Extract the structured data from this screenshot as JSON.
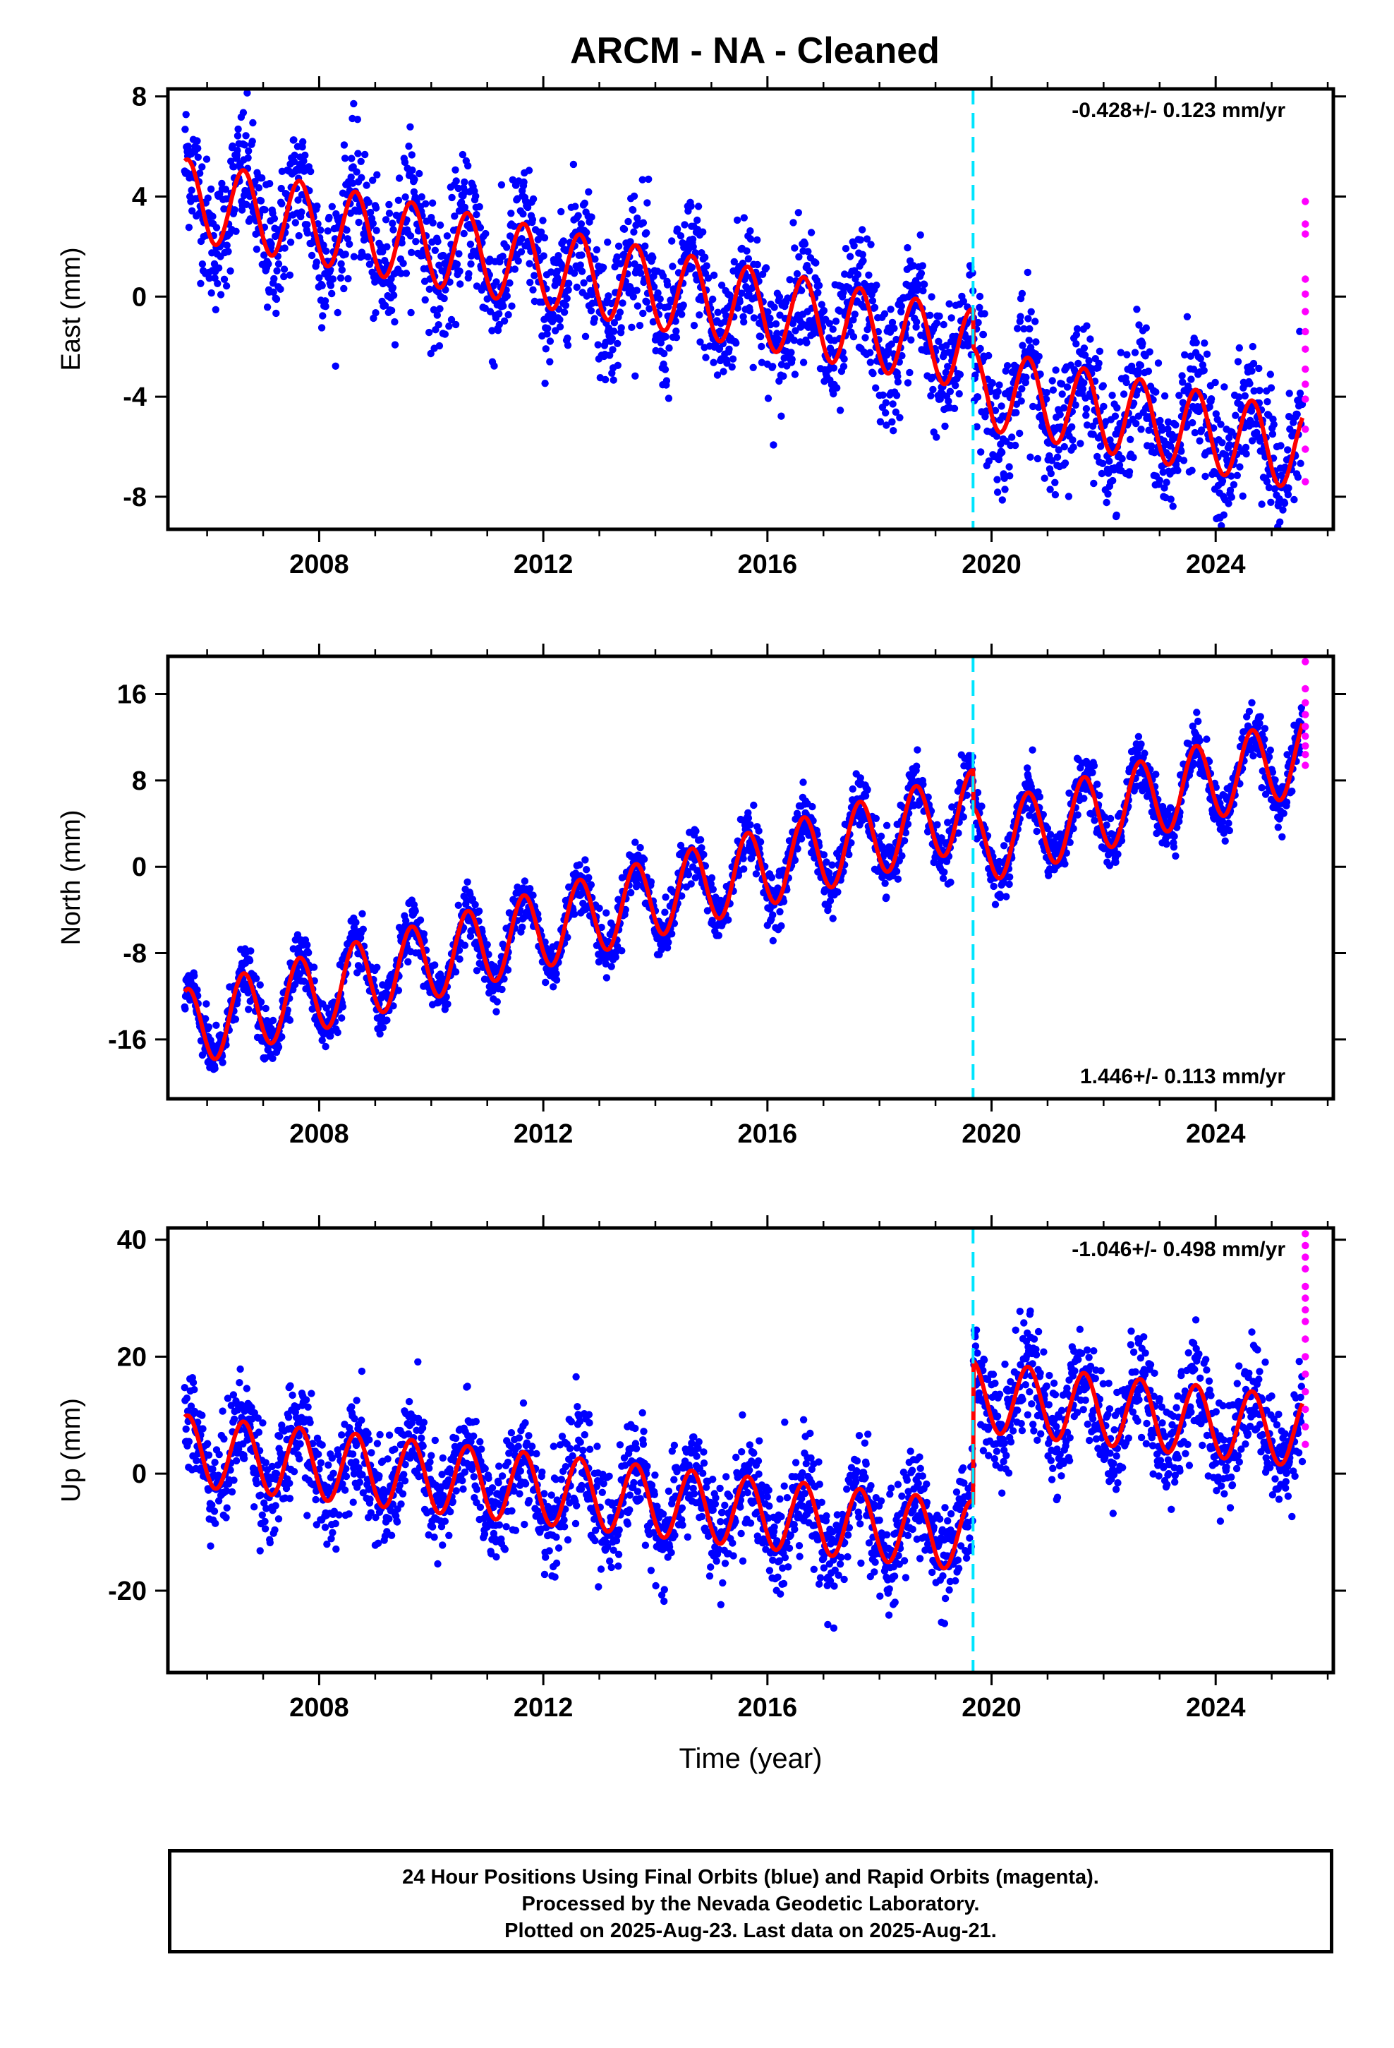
{
  "figure": {
    "title": "ARCM  - NA - Cleaned",
    "xlabel": "Time (year)",
    "x_ticks": [
      "2008",
      "2012",
      "2016",
      "2020",
      "2024"
    ],
    "equipment_change_year": 2019.67,
    "colors": {
      "final_orbits": "#0000ff",
      "rapid_orbits": "#ff00ff",
      "model": "#ff0000",
      "equipment_change": "#00e5ff"
    }
  },
  "caption": {
    "line1": "24 Hour Positions Using Final Orbits (blue) and Rapid Orbits (magenta).",
    "line2": "Processed by the Nevada Geodetic Laboratory.",
    "line3": "Plotted on 2025-Aug-23. Last data on 2025-Aug-21."
  },
  "chart_data": [
    {
      "type": "scatter",
      "ylabel": "East (mm)",
      "velocity_label": "-0.428+/- 0.123 mm/yr",
      "velocity_position": "top-right",
      "y_ticks": [
        "8",
        "4",
        "0",
        "-4",
        "-8"
      ],
      "x_range": [
        2005.3,
        2026.1
      ],
      "y_range": [
        -9.3,
        8.3
      ],
      "series": [
        {
          "name": "Final Orbits",
          "x_range": [
            2005.6,
            2025.55
          ],
          "trend": {
            "intercept_at_2005_6": 3.9,
            "rate_mm_per_yr": -0.428
          },
          "seasonal_amplitude": 1.6,
          "scatter_sd": 1.3
        },
        {
          "name": "Rapid Orbits",
          "x": 2025.6,
          "y": [
            3.8,
            2.9,
            2.5,
            0.7,
            0.1,
            -0.6,
            -1.4,
            -2.1,
            -2.9,
            -3.5,
            -4.1,
            -5.3,
            -6.1,
            -7.4
          ]
        }
      ],
      "model": {
        "color": "#ff0000",
        "offset_at_equipment_change": -1.5
      }
    },
    {
      "type": "scatter",
      "ylabel": "North (mm)",
      "velocity_label": "1.446+/- 0.113 mm/yr",
      "velocity_position": "bottom-right",
      "y_ticks": [
        "16",
        "8",
        "0",
        "-8",
        "-16"
      ],
      "x_range": [
        2005.3,
        2026.1
      ],
      "y_range": [
        -21.5,
        19.5
      ],
      "series": [
        {
          "name": "Final Orbits",
          "x_range": [
            2005.6,
            2025.55
          ],
          "trend": {
            "intercept_at_2005_6": -15.0,
            "rate_mm_per_yr": 1.446
          },
          "seasonal_amplitude": 3.6,
          "scatter_sd": 1.2
        },
        {
          "name": "Rapid Orbits",
          "x": 2025.6,
          "y": [
            19.0,
            16.5,
            15.2,
            14.1,
            13.0,
            12.1,
            11.2,
            10.4,
            9.4
          ]
        }
      ],
      "model": {
        "color": "#ff0000",
        "offset_at_equipment_change": -3.5
      }
    },
    {
      "type": "scatter",
      "ylabel": "Up (mm)",
      "velocity_label": "-1.046+/- 0.498 mm/yr",
      "velocity_position": "top-right",
      "y_ticks": [
        "40",
        "20",
        "0",
        "-20"
      ],
      "x_range": [
        2005.3,
        2026.1
      ],
      "y_range": [
        -34,
        42
      ],
      "series": [
        {
          "name": "Final Orbits",
          "x_range": [
            2005.6,
            2025.55
          ],
          "trend": {
            "intercept_at_2005_6": 4.0,
            "rate_mm_per_yr": -1.046
          },
          "seasonal_amplitude": 6.0,
          "scatter_sd": 4.5
        },
        {
          "name": "Rapid Orbits",
          "x": 2025.6,
          "y": [
            41.0,
            39.0,
            37.0,
            35.0,
            32.0,
            30.0,
            28.0,
            26.0,
            23.0,
            20.0,
            17.0,
            14.0,
            11.0,
            8.0,
            5.0
          ]
        }
      ],
      "model": {
        "color": "#ff0000",
        "offset_at_equipment_change": 24.0
      }
    }
  ]
}
